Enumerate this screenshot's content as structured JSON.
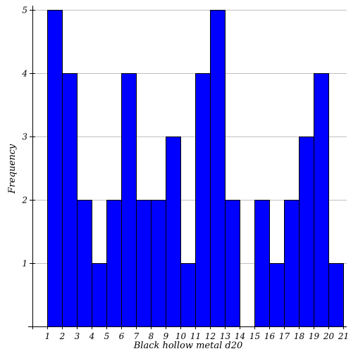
{
  "chart_data": {
    "type": "bar",
    "title": "",
    "xlabel": "Black hollow metal d20",
    "ylabel": "Frequency",
    "x_ticks": [
      1,
      2,
      3,
      4,
      5,
      6,
      7,
      8,
      9,
      10,
      11,
      12,
      13,
      14,
      15,
      16,
      17,
      18,
      19,
      20,
      21
    ],
    "y_ticks": [
      1,
      2,
      3,
      4,
      5
    ],
    "bins": [
      {
        "start": 1,
        "end": 2,
        "value": 5
      },
      {
        "start": 2,
        "end": 3,
        "value": 4
      },
      {
        "start": 3,
        "end": 4,
        "value": 2
      },
      {
        "start": 4,
        "end": 5,
        "value": 1
      },
      {
        "start": 5,
        "end": 6,
        "value": 2
      },
      {
        "start": 6,
        "end": 7,
        "value": 4
      },
      {
        "start": 7,
        "end": 8,
        "value": 2
      },
      {
        "start": 8,
        "end": 9,
        "value": 2
      },
      {
        "start": 9,
        "end": 10,
        "value": 3
      },
      {
        "start": 10,
        "end": 11,
        "value": 1
      },
      {
        "start": 11,
        "end": 12,
        "value": 4
      },
      {
        "start": 12,
        "end": 13,
        "value": 5
      },
      {
        "start": 13,
        "end": 14,
        "value": 2
      },
      {
        "start": 14,
        "end": 15,
        "value": 0
      },
      {
        "start": 15,
        "end": 16,
        "value": 2
      },
      {
        "start": 16,
        "end": 17,
        "value": 1
      },
      {
        "start": 17,
        "end": 18,
        "value": 2
      },
      {
        "start": 18,
        "end": 19,
        "value": 3
      },
      {
        "start": 19,
        "end": 20,
        "value": 4
      },
      {
        "start": 20,
        "end": 21,
        "value": 1
      }
    ],
    "xlim": [
      1,
      21
    ],
    "ylim": [
      0,
      5
    ],
    "grid": "horizontal",
    "legend": "none",
    "colors": {
      "bar_fill": "#0000ff",
      "bar_stroke": "#000000",
      "grid": "#c0c0c0",
      "axis": "#000000"
    }
  }
}
